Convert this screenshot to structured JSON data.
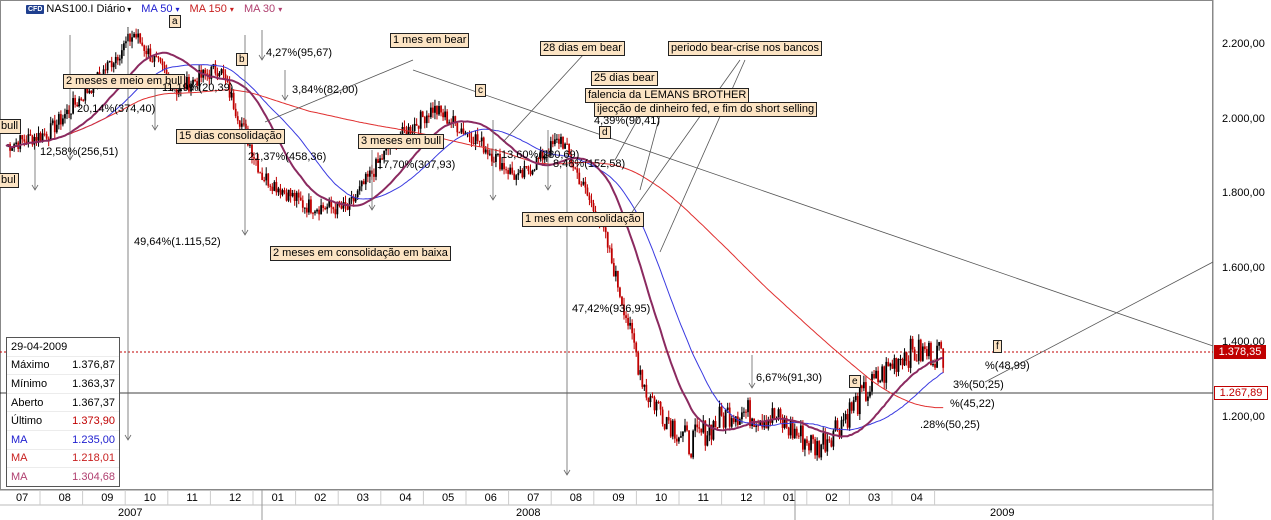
{
  "header": {
    "cfd_badge": "CFD",
    "symbol": "NAS100.I Diário",
    "symbol_arrow": "▾",
    "ma50_label": "MA 50",
    "ma50_arrow": "▾",
    "ma150_label": "MA 150",
    "ma150_arrow": "▾",
    "ma30_label": "MA 30",
    "ma30_arrow": "▾"
  },
  "colors": {
    "up_candle": "#000000",
    "down_candle": "#c00000",
    "ma50": "#3a3ae0",
    "ma150": "#e03030",
    "ma30": "#8b2a60",
    "price_tag_last": "#c00000",
    "price_tag_level": "#c00000"
  },
  "ohlc_panel": {
    "date": "29-04-2009",
    "rows": [
      {
        "label": "Máximo",
        "value": "1.376,87"
      },
      {
        "label": "Mínimo",
        "value": "1.363,37"
      },
      {
        "label": "Aberto",
        "value": "1.367,37"
      },
      {
        "label": "Último",
        "value": "1.373,90"
      },
      {
        "label": "MA",
        "value": "1.235,00"
      },
      {
        "label": "MA",
        "value": "1.218,01"
      },
      {
        "label": "MA",
        "value": "1.304,68"
      }
    ]
  },
  "price_tags": {
    "last": "1.378,35",
    "level": "1.267,89"
  },
  "annotations": {
    "bull_2m": "2 meses e meio em bull",
    "cons_15": "15 dias consolidação",
    "bear_1m": "1 mes em bear",
    "bull_3m": "3 meses em bull",
    "cons_baixa": "2 meses em consolidação em baixa",
    "bear_28": "28 dias em bear",
    "bear_25": "25 dias bear",
    "crise": "periodo bear-crise nos bancos",
    "lemans": "falencia da LEMANS BROTHER",
    "fed": "ijecção de dinheiro fed, e fim do short selling",
    "cons_1m": "1 mes em consolidação",
    "bull_left": "bull",
    "bull_left2": "bul",
    "pct_20": "20,14%(374,40)",
    "pct_12": "12,58%(256,51)",
    "pct_11": "11,19%(20,39)",
    "pct_427": "4,27%(95,67)",
    "pct_384": "3,84%(82,00)",
    "pct_21": "21,37%(458,36)",
    "pct_4964": "49,64%(1.115,52)",
    "pct_177": "17,70%(307,93)",
    "pct_136": "13,60%(280,69)",
    "pct_848": "8,48%(152,58)",
    "pct_439": "4,39%(90,41)",
    "pct_4742": "47,42%(936,95)",
    "pct_667": "6,67%(91,30)",
    "pct_e1": "%(48,99)",
    "pct_e2": "3%(50,25)",
    "pct_e3": "%(45,22)",
    "pct_e4": ".28%(50,25)"
  },
  "waves": {
    "a": "a",
    "b": "b",
    "c": "c",
    "d": "d",
    "e": "e",
    "f": "f"
  },
  "chart_data": {
    "type": "candlestick",
    "title": "NAS100.I Diário",
    "xlabel": "",
    "ylabel": "",
    "ylim": [
      1020,
      2300
    ],
    "yticks": [
      "1.200,00",
      "1.400,00",
      "1.600,00",
      "1.800,00",
      "2.000,00",
      "2.200,00"
    ],
    "ytick_values": [
      1200,
      1400,
      1600,
      1800,
      2000,
      2200
    ],
    "months": [
      "07",
      "08",
      "09",
      "10",
      "11",
      "12",
      "01",
      "02",
      "03",
      "04",
      "05",
      "06",
      "07",
      "08",
      "09",
      "10",
      "11",
      "12",
      "01",
      "02",
      "03",
      "04"
    ],
    "years": [
      "2007",
      "2008",
      "2009"
    ],
    "horizontal_levels": [
      1378.35,
      1267.89
    ],
    "grid": false,
    "price_path_monthly": [
      {
        "month": "2007-07",
        "close": 1930
      },
      {
        "month": "2007-08",
        "close": 1965
      },
      {
        "month": "2007-09",
        "close": 2090
      },
      {
        "month": "2007-10",
        "close": 2230
      },
      {
        "month": "2007-11",
        "close": 2080
      },
      {
        "month": "2007-12",
        "close": 2140
      },
      {
        "month": "2008-01",
        "close": 1850
      },
      {
        "month": "2008-02",
        "close": 1770
      },
      {
        "month": "2008-03",
        "close": 1760
      },
      {
        "month": "2008-04",
        "close": 1930
      },
      {
        "month": "2008-05",
        "close": 2030
      },
      {
        "month": "2008-06",
        "close": 1950
      },
      {
        "month": "2008-07",
        "close": 1840
      },
      {
        "month": "2008-08",
        "close": 1950
      },
      {
        "month": "2008-09",
        "close": 1700
      },
      {
        "month": "2008-10",
        "close": 1270
      },
      {
        "month": "2008-11",
        "close": 1130
      },
      {
        "month": "2008-12",
        "close": 1220
      },
      {
        "month": "2009-01",
        "close": 1200
      },
      {
        "month": "2009-02",
        "close": 1120
      },
      {
        "month": "2009-03",
        "close": 1250
      },
      {
        "month": "2009-04",
        "close": 1374
      }
    ]
  }
}
